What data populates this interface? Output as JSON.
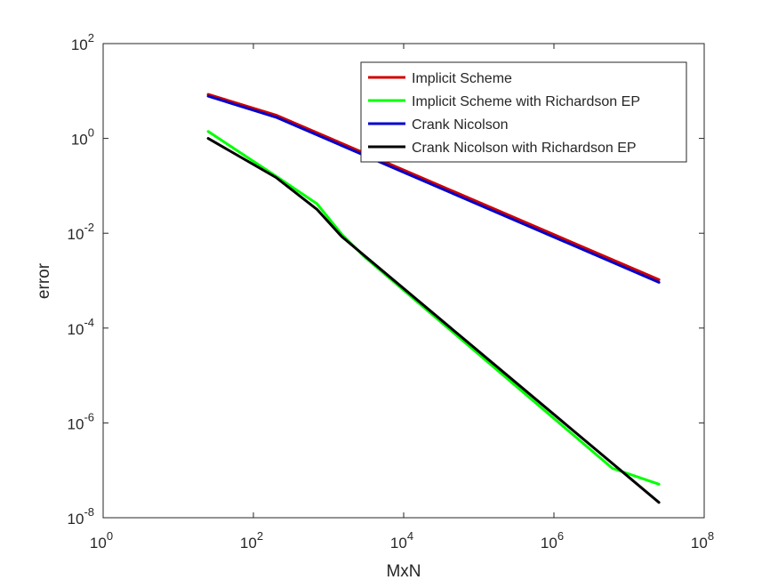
{
  "chart_data": {
    "type": "line",
    "xlabel": "MxN",
    "ylabel": "error",
    "xscale": "log",
    "yscale": "log",
    "xlim": [
      1,
      100000000
    ],
    "ylim": [
      1e-08,
      100
    ],
    "grid": false,
    "legend_position": "top-right",
    "x_ticks": [
      {
        "value": 1,
        "base": "10",
        "exp": "0"
      },
      {
        "value": 100,
        "base": "10",
        "exp": "2"
      },
      {
        "value": 10000,
        "base": "10",
        "exp": "4"
      },
      {
        "value": 1000000,
        "base": "10",
        "exp": "6"
      },
      {
        "value": 100000000,
        "base": "10",
        "exp": "8"
      }
    ],
    "y_ticks": [
      {
        "value": 1e-08,
        "base": "10",
        "exp": "-8"
      },
      {
        "value": 1e-06,
        "base": "10",
        "exp": "-6"
      },
      {
        "value": 0.0001,
        "base": "10",
        "exp": "-4"
      },
      {
        "value": 0.01,
        "base": "10",
        "exp": "-2"
      },
      {
        "value": 1,
        "base": "10",
        "exp": "0"
      },
      {
        "value": 100,
        "base": "10",
        "exp": "2"
      }
    ],
    "series": [
      {
        "name": "Implicit Scheme",
        "color": "#d00000",
        "x": [
          25,
          200,
          25000000
        ],
        "y": [
          8.5,
          3.1,
          0.00105
        ]
      },
      {
        "name": "Implicit Scheme with Richardson EP",
        "color": "#00ff00",
        "x": [
          25,
          200,
          700,
          1500,
          3000,
          6000000,
          25000000
        ],
        "y": [
          1.4,
          0.16,
          0.042,
          0.0095,
          0.0032,
          1.1e-07,
          5.1e-08
        ]
      },
      {
        "name": "Crank Nicolson",
        "color": "#0000cc",
        "x": [
          25,
          200,
          25000000
        ],
        "y": [
          7.8,
          2.8,
          0.00092
        ]
      },
      {
        "name": "Crank Nicolson with Richardson EP",
        "color": "#000000",
        "x": [
          25,
          200,
          700,
          1500,
          25000000
        ],
        "y": [
          1.0,
          0.15,
          0.032,
          0.0085,
          2.1e-08
        ]
      }
    ]
  }
}
